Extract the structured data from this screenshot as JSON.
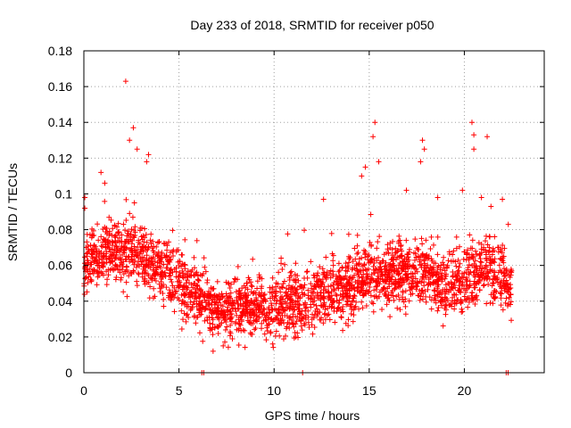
{
  "chart_data": {
    "type": "scatter",
    "title": "Day 233 of 2018, SRMTID for receiver p050",
    "xlabel": "GPS time / hours",
    "ylabel": "SRMTID / TECUs",
    "xlim": [
      0,
      24.2
    ],
    "ylim": [
      0,
      0.18
    ],
    "xticks": [
      0,
      5,
      10,
      15,
      20
    ],
    "xtick_labels": [
      "0",
      "5",
      "10",
      "15",
      "20"
    ],
    "yticks": [
      0,
      0.02,
      0.04,
      0.06,
      0.08,
      0.1,
      0.12,
      0.14,
      0.16,
      0.18
    ],
    "ytick_labels": [
      "0",
      "0.02",
      "0.04",
      "0.06",
      "0.08",
      "0.1",
      "0.12",
      "0.14",
      "0.16",
      "0.18"
    ],
    "grid": true,
    "marker": "+",
    "color": "#ff0000",
    "series": [
      {
        "name": "SRMTID",
        "trend": [
          [
            0.0,
            0.06
          ],
          [
            1.0,
            0.068
          ],
          [
            2.0,
            0.068
          ],
          [
            3.0,
            0.066
          ],
          [
            4.0,
            0.058
          ],
          [
            5.0,
            0.05
          ],
          [
            6.0,
            0.042
          ],
          [
            7.0,
            0.034
          ],
          [
            8.0,
            0.036
          ],
          [
            9.0,
            0.038
          ],
          [
            10.0,
            0.037
          ],
          [
            11.0,
            0.039
          ],
          [
            12.0,
            0.04
          ],
          [
            13.0,
            0.046
          ],
          [
            14.0,
            0.048
          ],
          [
            15.0,
            0.052
          ],
          [
            16.0,
            0.054
          ],
          [
            17.0,
            0.055
          ],
          [
            18.0,
            0.056
          ],
          [
            19.0,
            0.048
          ],
          [
            20.0,
            0.05
          ],
          [
            21.0,
            0.06
          ],
          [
            22.0,
            0.052
          ],
          [
            22.5,
            0.048
          ]
        ],
        "range": [
          0.0,
          22.5
        ],
        "count": 2600,
        "spread": 0.012,
        "outliers": [
          [
            2.2,
            0.163
          ],
          [
            2.6,
            0.137
          ],
          [
            2.4,
            0.13
          ],
          [
            3.4,
            0.122
          ],
          [
            3.3,
            0.118
          ],
          [
            2.8,
            0.125
          ],
          [
            15.3,
            0.14
          ],
          [
            15.2,
            0.132
          ],
          [
            14.8,
            0.115
          ],
          [
            14.6,
            0.11
          ],
          [
            17.8,
            0.13
          ],
          [
            17.9,
            0.125
          ],
          [
            17.7,
            0.118
          ],
          [
            20.4,
            0.14
          ],
          [
            20.5,
            0.133
          ],
          [
            21.2,
            0.132
          ],
          [
            20.5,
            0.125
          ],
          [
            18.6,
            0.098
          ],
          [
            12.6,
            0.097
          ],
          [
            0.9,
            0.112
          ],
          [
            1.1,
            0.106
          ],
          [
            19.9,
            0.102
          ],
          [
            20.9,
            0.098
          ],
          [
            22.0,
            0.097
          ],
          [
            15.5,
            0.118
          ],
          [
            0.05,
            0.092
          ],
          [
            0.05,
            0.098
          ],
          [
            21.4,
            0.093
          ]
        ],
        "zero_points": [
          6.2,
          6.3,
          11.5,
          22.2,
          22.3
        ]
      }
    ]
  }
}
